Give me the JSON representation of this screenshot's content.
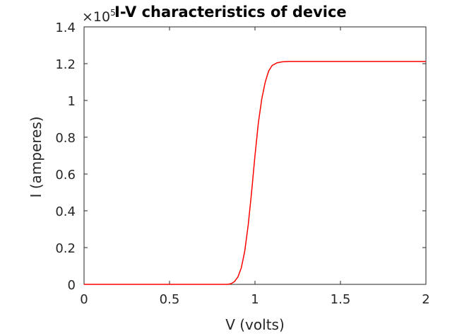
{
  "chart_data": {
    "type": "line",
    "title": "I-V characteristics of device",
    "xlabel": "V (volts)",
    "ylabel": "I (amperes)",
    "xlim": [
      0,
      2
    ],
    "ylim": [
      0,
      1.4
    ],
    "y_multiplier_base": "×10",
    "y_multiplier_exponent": "5",
    "x_ticks": [
      0,
      0.5,
      1,
      1.5,
      2
    ],
    "x_tick_labels": [
      "0",
      "0.5",
      "1",
      "1.5",
      "2"
    ],
    "y_ticks": [
      0,
      0.2,
      0.4,
      0.6,
      0.8,
      1.0,
      1.2,
      1.4
    ],
    "y_tick_labels": [
      "0",
      "0.2",
      "0.4",
      "0.6",
      "0.8",
      "1",
      "1.2",
      "1.4"
    ],
    "grid": false,
    "series": [
      {
        "color": "#ff0000",
        "x": [
          0,
          0.5,
          0.84,
          0.86,
          0.88,
          0.9,
          0.92,
          0.94,
          0.96,
          0.98,
          1.0,
          1.02,
          1.04,
          1.06,
          1.08,
          1.1,
          1.13,
          1.16,
          1.2,
          1.5,
          2.0
        ],
        "y": [
          0,
          0,
          0,
          0.004,
          0.015,
          0.04,
          0.09,
          0.18,
          0.32,
          0.5,
          0.7,
          0.88,
          1.01,
          1.1,
          1.16,
          1.19,
          1.205,
          1.21,
          1.212,
          1.212,
          1.212
        ]
      }
    ]
  }
}
